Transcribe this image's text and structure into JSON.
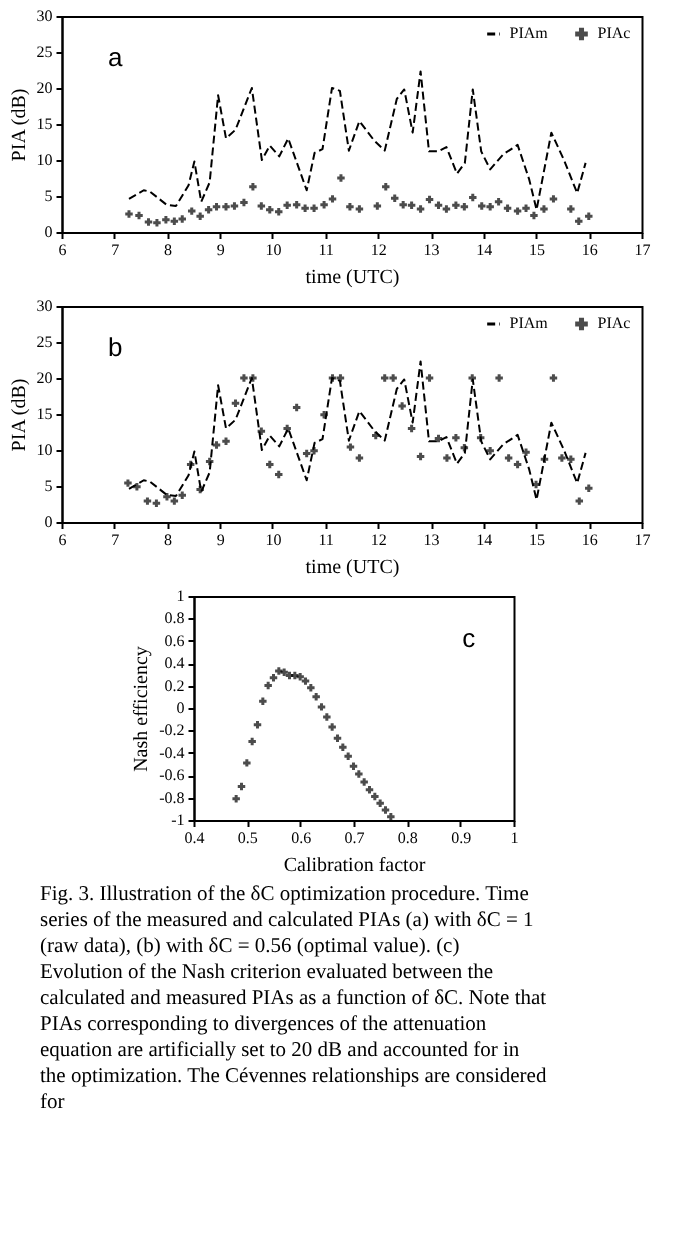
{
  "chart_data": [
    {
      "type": "line",
      "xlabel": "time (UTC)",
      "ylabel": "PIA (dB)",
      "annotations": [
        "a"
      ],
      "xlim": [
        6,
        17
      ],
      "xticks": [
        6,
        7,
        8,
        9,
        10,
        11,
        12,
        13,
        14,
        15,
        16,
        17
      ],
      "ylim": [
        0,
        30
      ],
      "yticks": [
        0,
        5,
        10,
        15,
        20,
        25,
        30
      ],
      "grid": false,
      "legend": "top right",
      "series": [
        {
          "name": "PIAm",
          "type": "line",
          "color": "#000000",
          "line_style": "dashed",
          "marker": "none",
          "x": [
            7.28,
            7.56,
            7.68,
            7.99,
            8.17,
            8.41,
            8.52,
            8.65,
            8.81,
            8.97,
            9.12,
            9.3,
            9.61,
            9.8,
            9.95,
            10.13,
            10.3,
            10.65,
            10.8,
            10.95,
            11.13,
            11.28,
            11.45,
            11.65,
            11.93,
            12.13,
            12.36,
            12.5,
            12.66,
            12.81,
            12.97,
            13.15,
            13.3,
            13.5,
            13.65,
            13.8,
            13.96,
            14.13,
            14.38,
            14.65,
            14.87,
            15.01,
            15.29,
            15.53,
            15.78,
            15.94
          ],
          "values": [
            4.6,
            5.8,
            5.6,
            3.8,
            3.6,
            6.5,
            9.8,
            4.2,
            6.9,
            19,
            13,
            14.2,
            20,
            10,
            12,
            10.5,
            13,
            5.8,
            11,
            11.5,
            20,
            19.6,
            11.3,
            15.4,
            12.7,
            11.3,
            18.5,
            19.8,
            13.8,
            22.3,
            11.2,
            11.2,
            11.8,
            8.1,
            9.6,
            19.8,
            11.2,
            8.7,
            10.8,
            12.1,
            7.3,
            3.1,
            13.8,
            10,
            5.4,
            9.6
          ]
        },
        {
          "name": "PIAc",
          "type": "scatter",
          "color": "#000000",
          "marker": "cross",
          "x": [
            7.28,
            7.47,
            7.65,
            7.81,
            7.98,
            8.14,
            8.29,
            8.47,
            8.63,
            8.79,
            8.94,
            9.12,
            9.28,
            9.46,
            9.63,
            9.79,
            9.95,
            10.12,
            10.28,
            10.46,
            10.62,
            10.79,
            10.98,
            11.14,
            11.3,
            11.47,
            11.65,
            11.99,
            12.15,
            12.32,
            12.48,
            12.64,
            12.81,
            12.98,
            13.15,
            13.3,
            13.48,
            13.64,
            13.8,
            13.97,
            14.13,
            14.29,
            14.46,
            14.65,
            14.81,
            14.96,
            15.15,
            15.33,
            15.66,
            15.81,
            16.0
          ],
          "values": [
            2.5,
            2.3,
            1.4,
            1.3,
            1.7,
            1.5,
            1.8,
            2.9,
            2.2,
            3.1,
            3.5,
            3.5,
            3.6,
            4.1,
            6.3,
            3.6,
            3.1,
            2.8,
            3.7,
            3.8,
            3.3,
            3.3,
            3.8,
            4.6,
            7.5,
            3.5,
            3.2,
            3.6,
            6.3,
            4.7,
            3.8,
            3.7,
            3.2,
            4.5,
            3.7,
            3.2,
            3.7,
            3.5,
            4.8,
            3.6,
            3.5,
            4.2,
            3.3,
            2.9,
            3.3,
            2.3,
            3.2,
            4.6,
            3.2,
            1.5,
            2.2
          ]
        }
      ]
    },
    {
      "type": "line",
      "xlabel": "time (UTC)",
      "ylabel": "PIA (dB)",
      "annotations": [
        "b"
      ],
      "xlim": [
        6,
        17
      ],
      "xticks": [
        6,
        7,
        8,
        9,
        10,
        11,
        12,
        13,
        14,
        15,
        16,
        17
      ],
      "ylim": [
        0,
        30
      ],
      "yticks": [
        0,
        5,
        10,
        15,
        20,
        25,
        30
      ],
      "grid": false,
      "legend": "top right",
      "series": [
        {
          "name": "PIAm",
          "type": "line",
          "color": "#000000",
          "line_style": "dashed",
          "marker": "none",
          "x": [
            7.28,
            7.56,
            7.68,
            7.99,
            8.17,
            8.41,
            8.52,
            8.65,
            8.81,
            8.97,
            9.12,
            9.3,
            9.61,
            9.8,
            9.95,
            10.13,
            10.3,
            10.65,
            10.8,
            10.95,
            11.13,
            11.28,
            11.45,
            11.65,
            11.93,
            12.13,
            12.36,
            12.5,
            12.66,
            12.81,
            12.97,
            13.15,
            13.3,
            13.5,
            13.65,
            13.8,
            13.96,
            14.13,
            14.38,
            14.65,
            14.87,
            15.01,
            15.29,
            15.53,
            15.78,
            15.94
          ],
          "values": [
            4.6,
            5.8,
            5.6,
            3.8,
            3.6,
            6.5,
            9.8,
            4.2,
            6.9,
            19,
            13,
            14.2,
            20,
            10,
            12,
            10.5,
            13,
            5.8,
            11,
            11.5,
            20,
            19.6,
            11.3,
            15.4,
            12.7,
            11.3,
            18.5,
            19.8,
            13.8,
            22.3,
            11.2,
            11.2,
            11.8,
            8.1,
            9.6,
            19.8,
            11.2,
            8.7,
            10.8,
            12.1,
            7.3,
            3.1,
            13.8,
            10,
            5.4,
            9.6
          ]
        },
        {
          "name": "PIAc",
          "type": "scatter",
          "color": "#000000",
          "marker": "cross",
          "x": [
            7.26,
            7.43,
            7.63,
            7.8,
            8.0,
            8.14,
            8.29,
            8.45,
            8.63,
            8.81,
            8.94,
            9.12,
            9.3,
            9.46,
            9.63,
            9.79,
            9.95,
            10.12,
            10.28,
            10.46,
            10.65,
            10.79,
            10.98,
            11.14,
            11.29,
            11.48,
            11.65,
            11.96,
            12.13,
            12.29,
            12.46,
            12.64,
            12.81,
            12.98,
            13.15,
            13.31,
            13.48,
            13.64,
            13.79,
            13.95,
            14.13,
            14.3,
            14.48,
            14.65,
            14.81,
            15.0,
            15.16,
            15.33,
            15.49,
            15.66,
            15.82,
            16.0
          ],
          "values": [
            5.4,
            4.9,
            2.9,
            2.6,
            3.5,
            2.9,
            3.7,
            8,
            4.5,
            8.4,
            10.7,
            11.2,
            16.5,
            20,
            20,
            12.6,
            8,
            6.6,
            13,
            15.9,
            9.5,
            9.9,
            14.9,
            20,
            20,
            10.4,
            8.9,
            12,
            20,
            20,
            16.1,
            13,
            9.1,
            20,
            11.6,
            8.9,
            11.7,
            10.3,
            20,
            11.7,
            9.9,
            20,
            8.9,
            8,
            9.7,
            5.2,
            8.7,
            20,
            8.9,
            8.7,
            2.9,
            4.7
          ]
        }
      ]
    },
    {
      "type": "scatter",
      "xlabel": "Calibration factor",
      "ylabel": "Nash efficiency",
      "annotations": [
        "c",
        "Fig. 3. Illustration of the δC optimization procedure. Time series of the measured and calculated PIAs (a) with δC = 1 (raw data), (b) with δC = 0.56 (optimal value). (c) Evolution of the Nash criterion evaluated between the calculated and measured PIAs as a function of δC. Note that PIAs corresponding to divergences of the attenuation equation are artificially set to 20 dB and accounted for in the optimization. The Cévennes relationships are considered for"
      ],
      "xlim": [
        0.4,
        1
      ],
      "xticks": [
        0.4,
        0.5,
        0.6,
        0.7,
        0.8,
        0.9,
        1
      ],
      "ylim": [
        -1,
        1
      ],
      "yticks": [
        -1,
        -0.8,
        -0.6,
        -0.4,
        -0.2,
        0,
        0.2,
        0.4,
        0.6,
        0.8,
        1
      ],
      "grid": false,
      "legend": false,
      "marker": "cross",
      "series": [
        {
          "color": "#000000",
          "x": [
            0.48,
            0.49,
            0.5,
            0.51,
            0.52,
            0.53,
            0.54,
            0.55,
            0.56,
            0.57,
            0.58,
            0.59,
            0.6,
            0.61,
            0.62,
            0.63,
            0.64,
            0.65,
            0.66,
            0.67,
            0.68,
            0.69,
            0.7,
            0.71,
            0.72,
            0.73,
            0.74,
            0.75,
            0.76,
            0.77
          ],
          "values": [
            -0.81,
            -0.7,
            -0.49,
            -0.3,
            -0.15,
            0.06,
            0.2,
            0.27,
            0.33,
            0.32,
            0.29,
            0.29,
            0.28,
            0.24,
            0.18,
            0.1,
            0.01,
            -0.08,
            -0.17,
            -0.27,
            -0.35,
            -0.43,
            -0.52,
            -0.59,
            -0.66,
            -0.73,
            -0.79,
            -0.85,
            -0.91,
            -0.97
          ]
        }
      ]
    }
  ]
}
